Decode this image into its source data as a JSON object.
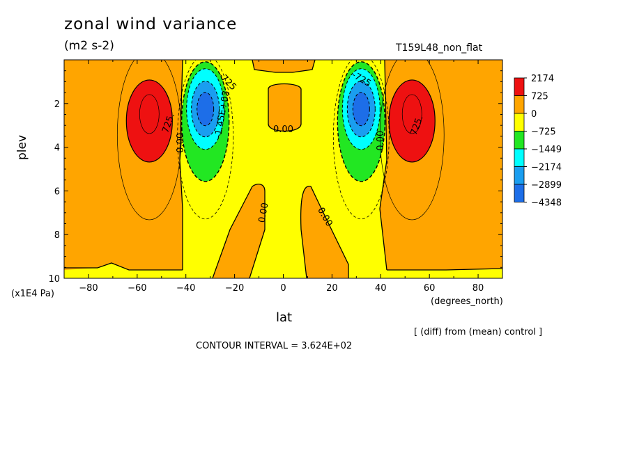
{
  "header": {
    "title": "zonal wind variance",
    "units": "(m2 s-2)",
    "run_label": "T159L48_non_flat"
  },
  "footer": {
    "diff_note": "[ (diff) from (mean) control ]",
    "contour_interval": "CONTOUR INTERVAL = 3.624E+02"
  },
  "chart_data": {
    "type": "heatmap",
    "title": "zonal wind variance",
    "subtitle": "(m2 s-2)",
    "xlabel": "lat",
    "x_units": "(degrees_north)",
    "ylabel": "plev",
    "y_units": "(x1E4 Pa)",
    "xlim": [
      -90,
      90
    ],
    "ylim": [
      10,
      0
    ],
    "x_ticks": [
      -80,
      -60,
      -40,
      -20,
      0,
      20,
      40,
      60,
      80
    ],
    "x_tick_labels": [
      "−80",
      "−60",
      "−40",
      "−20",
      "0",
      "20",
      "40",
      "60",
      "80"
    ],
    "y_ticks": [
      2,
      4,
      6,
      8,
      10
    ],
    "y_tick_labels": [
      "2",
      "4",
      "6",
      "8",
      "10"
    ],
    "colorbar": {
      "levels": [
        "2174",
        "725",
        "0",
        "−725",
        "−1449",
        "−2174",
        "−2899",
        "−4348"
      ],
      "colors": [
        "#ee1111",
        "#ffa500",
        "#ffff00",
        "#22e722",
        "#00ffff",
        "#1a9ef0",
        "#1d6ee8"
      ]
    },
    "contour_labels": [
      {
        "text": "0.00",
        "lat": -42,
        "plev": 3.8,
        "rotate": -90
      },
      {
        "text": "725.",
        "lat": -47,
        "plev": 2.9,
        "rotate": -70
      },
      {
        "text": "0.00",
        "lat": 0,
        "plev": 3.2,
        "rotate": 0
      },
      {
        "text": "0.00",
        "lat": 40,
        "plev": 3.7,
        "rotate": -90
      },
      {
        "text": "725.",
        "lat": 55,
        "plev": 3.0,
        "rotate": -70
      },
      {
        "text": "0.00",
        "lat": -8,
        "plev": 7.0,
        "rotate": -80
      },
      {
        "text": "0.00",
        "lat": 17,
        "plev": 7.2,
        "rotate": 60
      },
      {
        "text": "-1.45E+03",
        "lat": -25,
        "plev": 2.5,
        "rotate": -80
      },
      {
        "text": "-725",
        "lat": -23,
        "plev": 1.0,
        "rotate": 45
      },
      {
        "text": "-725",
        "lat": 32,
        "plev": 0.9,
        "rotate": 30
      }
    ],
    "features": [
      {
        "name": "southern positive maximum",
        "lat": -55,
        "plev": 2.3,
        "value_class": ">2174"
      },
      {
        "name": "southern negative minimum",
        "lat": -32,
        "plev": 1.9,
        "value_class": "<-4348"
      },
      {
        "name": "northern negative minimum",
        "lat": 32,
        "plev": 1.9,
        "value_class": "<-4348"
      },
      {
        "name": "northern positive maximum",
        "lat": 52,
        "plev": 2.3,
        "value_class": ">2174"
      }
    ]
  }
}
